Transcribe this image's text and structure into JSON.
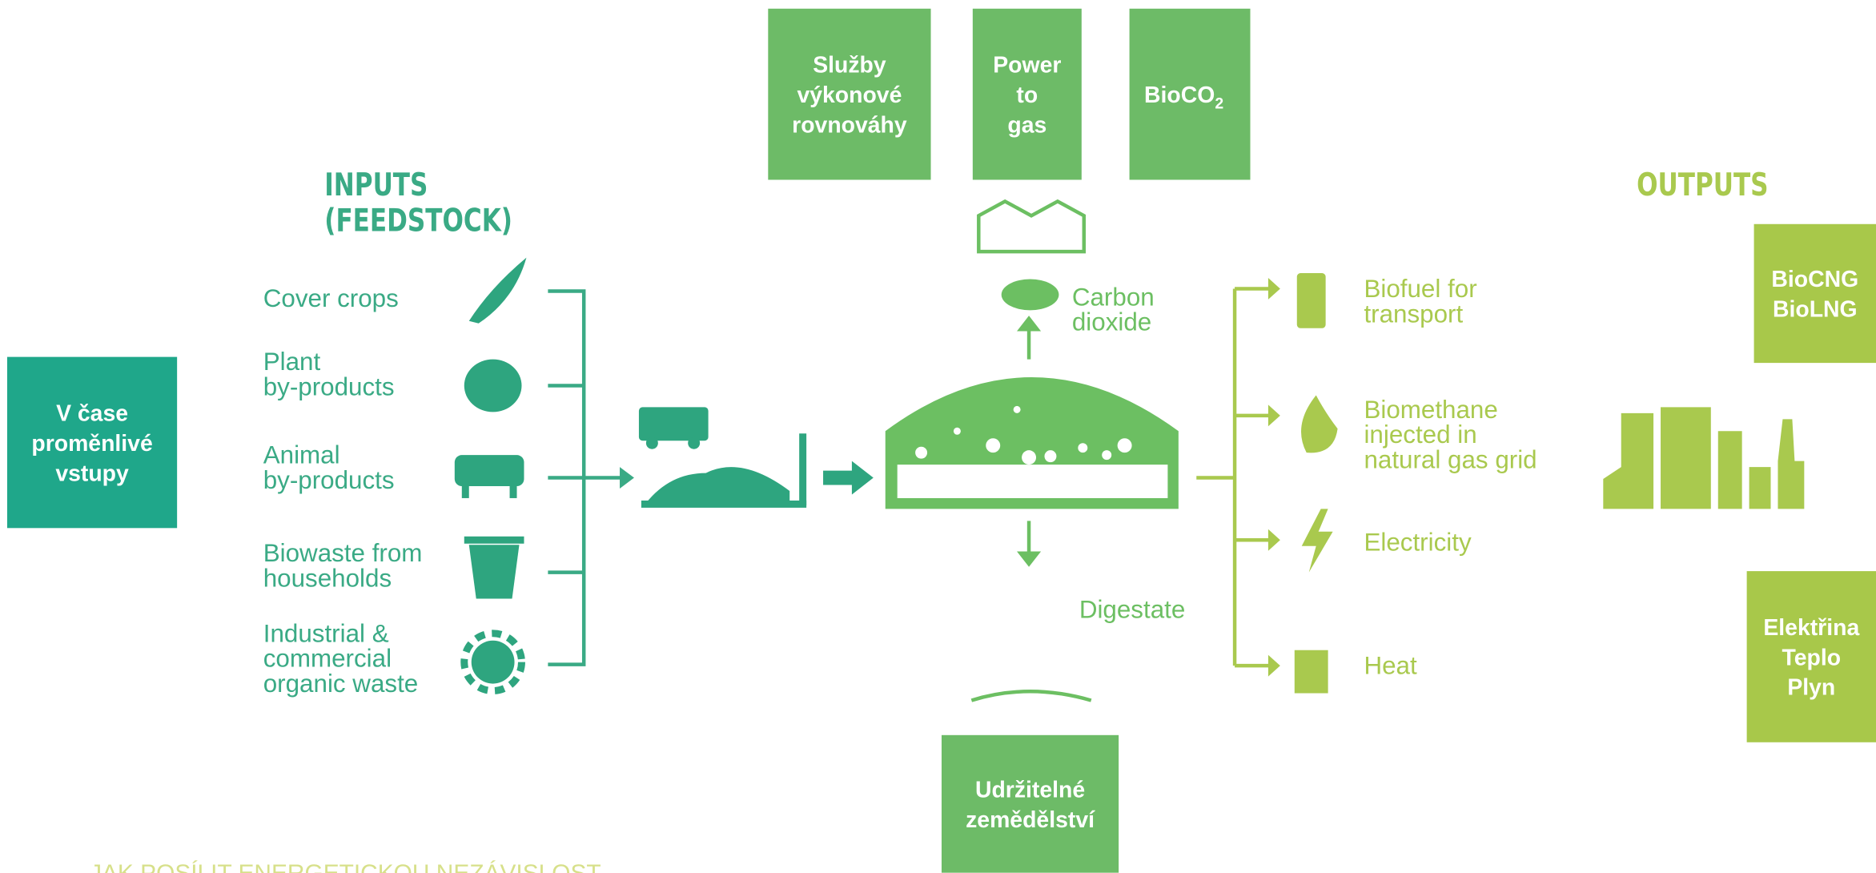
{
  "callouts": [
    {
      "lines": [
        "Služby",
        "výkonové",
        "rovnováhy"
      ]
    },
    {
      "lines": [
        "Power",
        "to",
        "gas"
      ]
    },
    {
      "lines": [
        "BioCO"
      ],
      "subscript": "2"
    },
    {
      "lines": [
        "V čase",
        "proměnlivé",
        "vstupy"
      ]
    },
    {
      "lines": [
        "BioCNG",
        "BioLNG"
      ]
    },
    {
      "lines": [
        "Elektřina",
        "Teplo",
        "Plyn"
      ]
    },
    {
      "lines": [
        "Udržitelné",
        "zemědělství"
      ]
    }
  ],
  "inputs": {
    "title": [
      "INPUTS",
      "(FEEDSTOCK)"
    ],
    "items": [
      [
        "Cover crops"
      ],
      [
        "Plant",
        "by-products"
      ],
      [
        "Animal",
        "by-products"
      ],
      [
        "Biowaste from",
        "households"
      ],
      [
        "Industrial &",
        "commercial",
        "organic waste"
      ]
    ]
  },
  "center": {
    "carbon": [
      "Carbon",
      "dioxide"
    ],
    "digestate": [
      "Digestate"
    ]
  },
  "outputs": {
    "title": [
      "OUTPUTS"
    ],
    "items": [
      [
        "Biofuel for",
        "transport"
      ],
      [
        "Biomethane",
        "injected in",
        "natural gas grid"
      ],
      [
        "Electricity"
      ],
      [
        "Heat"
      ]
    ]
  },
  "footer": "JAK POSÍLIT ENERGETICKOU NEZÁVISLOST"
}
